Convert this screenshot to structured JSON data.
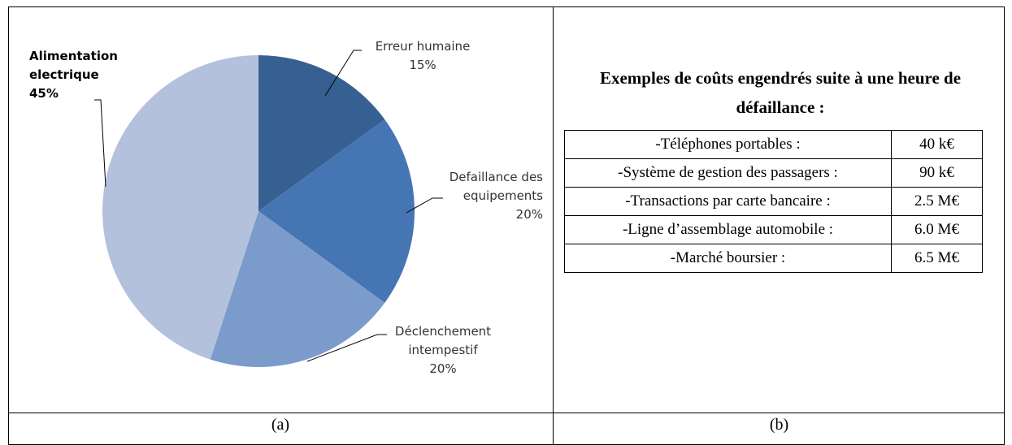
{
  "chart_data": {
    "type": "pie",
    "categories": [
      "Erreur humaine",
      "Defaillance des equipements",
      "Déclenchement intempestif",
      "Alimentation electrique"
    ],
    "values": [
      15,
      20,
      20,
      45
    ],
    "value_labels": [
      "15%",
      "20%",
      "20%",
      "45%"
    ],
    "colors": [
      "#376092",
      "#4675b4",
      "#7b9bcb",
      "#b4c1dd"
    ]
  },
  "table": {
    "title": "Exemples de coûts engendrés suite à une heure de défaillance :",
    "rows": [
      [
        "-Téléphones portables :",
        "40 k€"
      ],
      [
        "-Système de gestion des passagers :",
        "90 k€"
      ],
      [
        "-Transactions par carte bancaire :",
        "2.5 M€"
      ],
      [
        "-Ligne d’assemblage automobile :",
        "6.0 M€"
      ],
      [
        "-Marché boursier :",
        "6.5 M€"
      ]
    ]
  },
  "captions": [
    "(a)",
    "(b)"
  ]
}
